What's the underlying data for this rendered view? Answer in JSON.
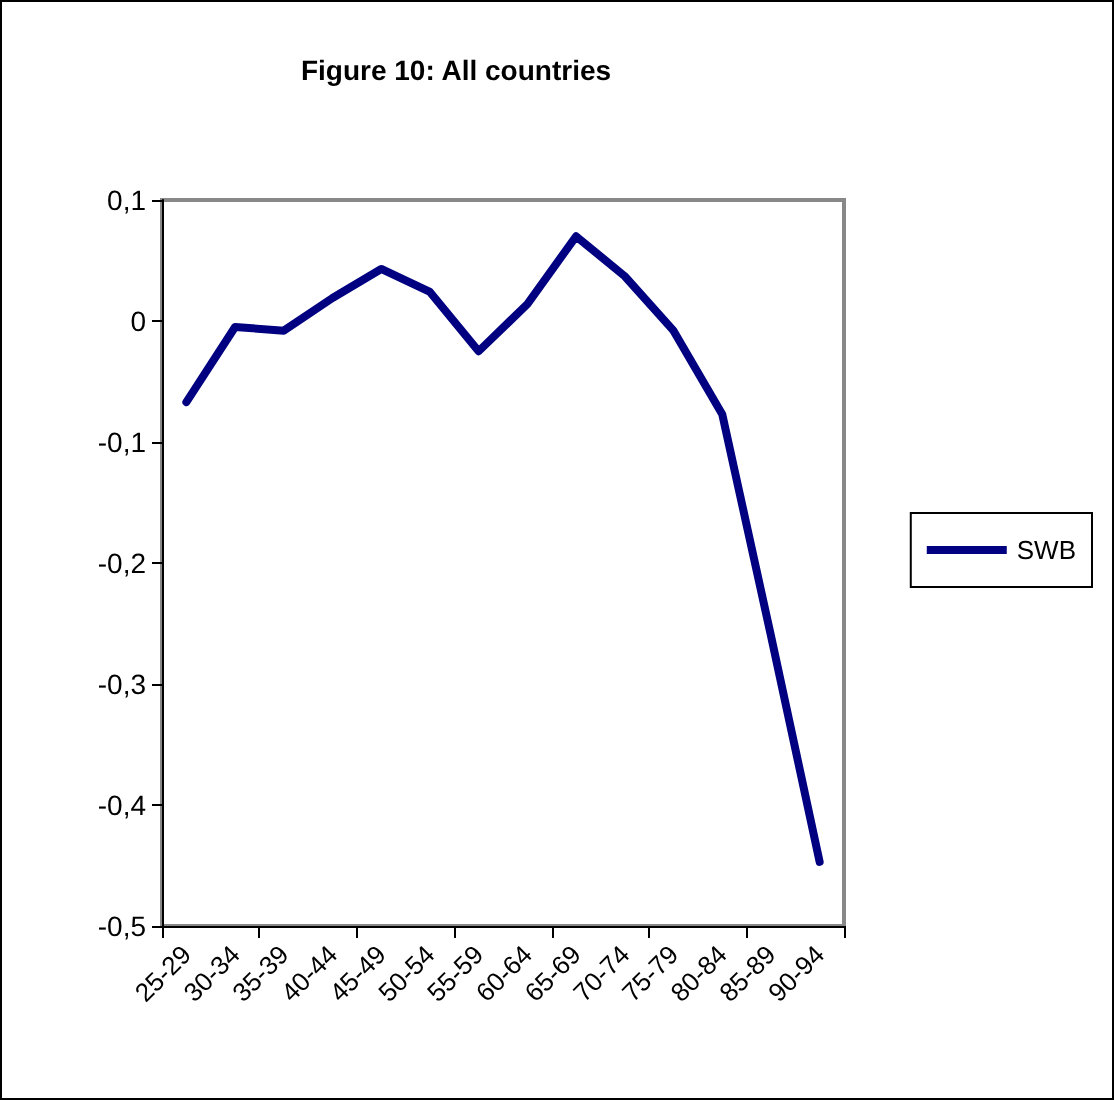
{
  "chart_data": {
    "type": "line",
    "title": "Figure 10: All countries",
    "categories": [
      "25-29",
      "30-34",
      "35-39",
      "40-44",
      "45-49",
      "50-54",
      "55-59",
      "60-64",
      "65-69",
      "70-74",
      "75-79",
      "80-84",
      "85-89",
      "90-94"
    ],
    "series": [
      {
        "name": "SWB",
        "color": "#000080",
        "values": [
          -0.067,
          -0.005,
          -0.008,
          0.019,
          0.043,
          0.024,
          -0.025,
          0.014,
          0.07,
          0.037,
          -0.008,
          -0.077,
          -0.26,
          -0.447
        ]
      }
    ],
    "ylim": [
      -0.5,
      0.1
    ],
    "yticks": [
      {
        "value": -0.5,
        "label": "-0,5"
      },
      {
        "value": -0.4,
        "label": "-0,4"
      },
      {
        "value": -0.3,
        "label": "-0,3"
      },
      {
        "value": -0.2,
        "label": "-0,2"
      },
      {
        "value": -0.1,
        "label": "-0,1"
      },
      {
        "value": 0,
        "label": "0"
      },
      {
        "value": 0.1,
        "label": "0,1"
      }
    ],
    "grid": false,
    "legend": "right",
    "marker": "none",
    "line_style": "solid"
  }
}
